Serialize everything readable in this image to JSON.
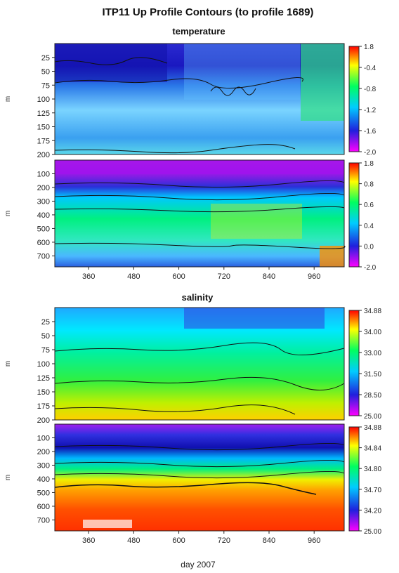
{
  "figure": {
    "title": "ITP11 Up Profile Contours (to profile 1689)",
    "xlabel": "day 2007"
  },
  "chart_data": [
    {
      "type": "heatmap",
      "variable": "temperature",
      "title": "temperature",
      "ylabel": "m",
      "y_ticks": [
        25,
        50,
        75,
        100,
        125,
        150,
        175,
        200
      ],
      "ylim": [
        0,
        200
      ],
      "xlim": [
        270,
        1040
      ],
      "x_ticks": [],
      "colorbar_ticks": [
        "1.8",
        "-0.4",
        "-0.8",
        "-1.2",
        "-1.6",
        "-2.0"
      ],
      "colorscale": [
        "#ff00ff",
        "#2020dd",
        "#00ccff",
        "#00ff60",
        "#ffff00",
        "#ff0000"
      ]
    },
    {
      "type": "heatmap",
      "variable": "temperature",
      "title": "",
      "ylabel": "m",
      "y_ticks": [
        100,
        200,
        300,
        400,
        500,
        600,
        700
      ],
      "ylim": [
        0,
        780
      ],
      "xlim": [
        270,
        1040
      ],
      "x_ticks": [
        360,
        480,
        600,
        720,
        840,
        960
      ],
      "colorbar_ticks": [
        "1.8",
        "0.8",
        "0.6",
        "0.4",
        "0.0",
        "-2.0"
      ],
      "colorscale": [
        "#ff00ff",
        "#2020dd",
        "#00ccff",
        "#00ff60",
        "#ffff00",
        "#ff0000"
      ]
    },
    {
      "type": "heatmap",
      "variable": "salinity",
      "title": "salinity",
      "ylabel": "m",
      "y_ticks": [
        25,
        50,
        75,
        100,
        125,
        150,
        175,
        200
      ],
      "ylim": [
        0,
        200
      ],
      "xlim": [
        270,
        1040
      ],
      "x_ticks": [],
      "colorbar_ticks": [
        "34.88",
        "34.00",
        "33.00",
        "31.50",
        "28.50",
        "25.00"
      ],
      "colorscale": [
        "#ff00ff",
        "#2020dd",
        "#00ccff",
        "#00ff60",
        "#ffff00",
        "#ff0000"
      ]
    },
    {
      "type": "heatmap",
      "variable": "salinity",
      "title": "",
      "ylabel": "m",
      "y_ticks": [
        100,
        200,
        300,
        400,
        500,
        600,
        700
      ],
      "ylim": [
        0,
        780
      ],
      "xlim": [
        270,
        1040
      ],
      "x_ticks": [
        360,
        480,
        600,
        720,
        840,
        960
      ],
      "colorbar_ticks": [
        "34.88",
        "34.84",
        "34.80",
        "34.70",
        "34.20",
        "25.00"
      ],
      "colorscale": [
        "#ff00ff",
        "#2020dd",
        "#00ccff",
        "#00ff60",
        "#ffff00",
        "#ff0000"
      ]
    }
  ]
}
